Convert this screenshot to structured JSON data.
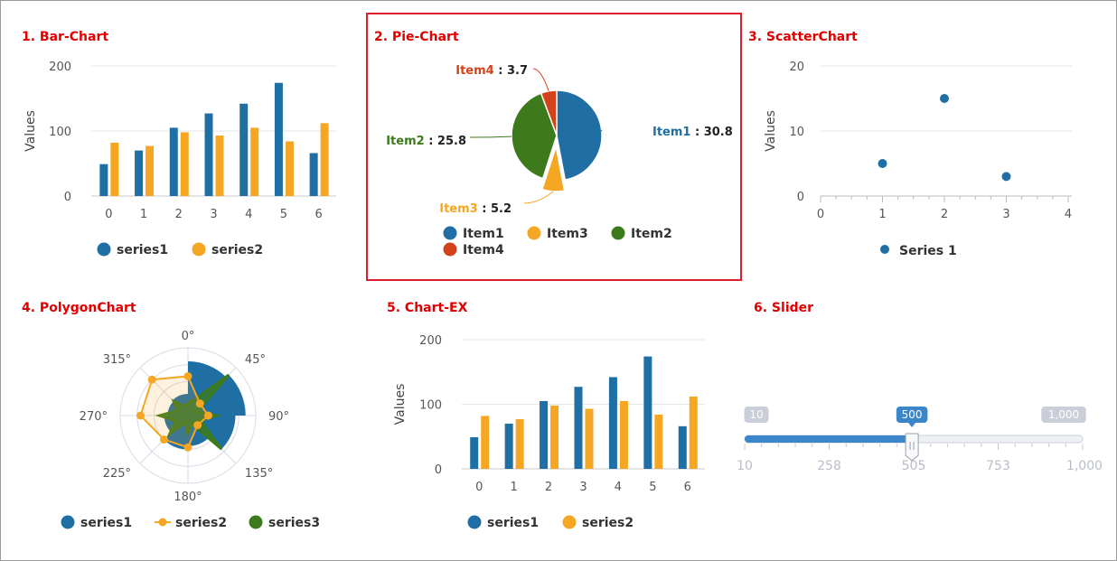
{
  "colors": {
    "title": "#e00000",
    "blue": "#1f6fa5",
    "orange": "#f5a623",
    "green": "#3c7a1c",
    "red": "#d2421b",
    "axis": "#999999",
    "grid": "#e6e6e6",
    "slider_blue": "#3b86c8",
    "slider_grey": "#c9ced8"
  },
  "panels": {
    "bar": {
      "title": "1. Bar-Chart"
    },
    "pie": {
      "title": "2. Pie-Chart"
    },
    "scatter": {
      "title": "3. ScatterChart"
    },
    "polygon": {
      "title": "4. PolygonChart"
    },
    "chartex": {
      "title": "5. Chart-EX"
    },
    "slider": {
      "title": "6. Slider"
    }
  },
  "chart_data": [
    {
      "id": "bar",
      "type": "bar",
      "title": "1. Bar-Chart",
      "categories": [
        "0",
        "1",
        "2",
        "3",
        "4",
        "5",
        "6"
      ],
      "series": [
        {
          "name": "series1",
          "values": [
            49,
            70,
            105,
            127,
            142,
            174,
            66
          ]
        },
        {
          "name": "series2",
          "values": [
            82,
            77,
            98,
            93,
            105,
            84,
            112
          ]
        }
      ],
      "ylabel": "Values",
      "ylim": [
        0,
        200
      ],
      "yticks": [
        0,
        100,
        200
      ],
      "legend": "bottom"
    },
    {
      "id": "pie",
      "type": "pie",
      "title": "2. Pie-Chart",
      "slices": [
        {
          "label": "Item1",
          "value": 30.8,
          "value_text": "30.8"
        },
        {
          "label": "Item3",
          "value": 5.2,
          "value_text": "5.2"
        },
        {
          "label": "Item2",
          "value": 25.8,
          "value_text": "25.8"
        },
        {
          "label": "Item4",
          "value": 3.7,
          "value_text": "3.7"
        }
      ],
      "legend": "bottom"
    },
    {
      "id": "scatter",
      "type": "scatter",
      "title": "3. ScatterChart",
      "series": [
        {
          "name": "Series 1",
          "x": [
            1,
            2,
            3
          ],
          "y": [
            5,
            15,
            3
          ]
        }
      ],
      "xlim": [
        0,
        4
      ],
      "ylim": [
        0,
        20
      ],
      "xticks": [
        0,
        1,
        2,
        3,
        4
      ],
      "yticks": [
        0,
        10,
        20
      ],
      "ylabel": "Values",
      "legend": "bottom"
    },
    {
      "id": "polygon",
      "type": "polar",
      "title": "4. PolygonChart",
      "angle_labels": [
        "0°",
        "45°",
        "90°",
        "135°",
        "180°",
        "225°",
        "270°",
        "315°"
      ],
      "rmax": 100,
      "series": [
        {
          "name": "series1",
          "kind": "sector",
          "angles": [
            0,
            45,
            90,
            135,
            180,
            225,
            270,
            315
          ],
          "values": [
            80,
            85,
            70,
            45,
            50,
            35,
            30,
            32
          ]
        },
        {
          "name": "series2",
          "kind": "line",
          "angles": [
            0,
            45,
            90,
            135,
            180,
            225,
            270,
            315
          ],
          "values": [
            58,
            25,
            30,
            20,
            47,
            50,
            70,
            75
          ]
        },
        {
          "name": "series3",
          "kind": "area",
          "angles": [
            0,
            22.5,
            45,
            67.5,
            90,
            112.5,
            135,
            157.5,
            180,
            202.5,
            225,
            247.5,
            270,
            292.5,
            315,
            337.5
          ],
          "values": [
            18,
            25,
            85,
            15,
            42,
            20,
            70,
            12,
            28,
            10,
            38,
            20,
            42,
            18,
            30,
            15
          ]
        }
      ],
      "legend": "bottom"
    },
    {
      "id": "chartex",
      "type": "bar",
      "title": "5. Chart-EX",
      "categories": [
        "0",
        "1",
        "2",
        "3",
        "4",
        "5",
        "6"
      ],
      "series": [
        {
          "name": "series1",
          "values": [
            49,
            70,
            105,
            127,
            142,
            174,
            66
          ]
        },
        {
          "name": "series2",
          "values": [
            82,
            77,
            98,
            93,
            105,
            84,
            112
          ]
        }
      ],
      "ylabel": "Values",
      "ylim": [
        0,
        200
      ],
      "yticks": [
        0,
        100,
        200
      ],
      "legend": "bottom"
    }
  ],
  "slider": {
    "title": "6. Slider",
    "min": 10,
    "max": 1000,
    "value": 500,
    "min_label": "10",
    "max_label": "1,000",
    "value_label": "500",
    "tick_labels": [
      "10",
      "258",
      "505",
      "753",
      "1,000"
    ],
    "tick_values": [
      10,
      257.5,
      505,
      752.5,
      1000
    ]
  }
}
